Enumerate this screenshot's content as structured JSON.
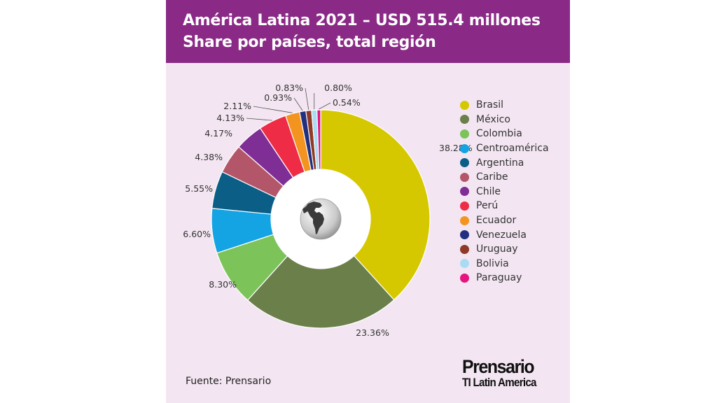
{
  "header": {
    "title": "América Latina 2021 – USD 515.4 millones",
    "subtitle": "Share por países, total región"
  },
  "source": "Fuente: Prensario",
  "logo": {
    "brand": "Prensario",
    "sub": "TI Latin America"
  },
  "colors": {
    "header_bg": "#8a2a86",
    "card_bg": "#f3e6f2"
  },
  "center_icon": "globe-americas-icon",
  "chart_data": {
    "type": "pie",
    "title": "América Latina 2021 – USD 515.4 millones",
    "subtitle": "Share por países, total región",
    "legend_position": "right",
    "series": [
      {
        "name": "Brasil",
        "value": 38.28,
        "label": "38.28%",
        "color": "#d6c800"
      },
      {
        "name": "México",
        "value": 23.36,
        "label": "23.36%",
        "color": "#6b7f4b"
      },
      {
        "name": "Colombia",
        "value": 8.3,
        "label": "8.30%",
        "color": "#7cc35a"
      },
      {
        "name": "Centroamérica",
        "value": 6.6,
        "label": "6.60%",
        "color": "#14a3e3"
      },
      {
        "name": "Argentina",
        "value": 5.55,
        "label": "5.55%",
        "color": "#0b5e86"
      },
      {
        "name": "Caribe",
        "value": 4.38,
        "label": "4.38%",
        "color": "#b4566a"
      },
      {
        "name": "Chile",
        "value": 4.17,
        "label": "4.17%",
        "color": "#7f2e96"
      },
      {
        "name": "Perú",
        "value": 4.13,
        "label": "4.13%",
        "color": "#ee2c45"
      },
      {
        "name": "Ecuador",
        "value": 2.11,
        "label": "2.11%",
        "color": "#f49420"
      },
      {
        "name": "Venezuela",
        "value": 0.93,
        "label": "0.93%",
        "color": "#23307f"
      },
      {
        "name": "Uruguay",
        "value": 0.83,
        "label": "0.83%",
        "color": "#8e3a27"
      },
      {
        "name": "Bolivia",
        "value": 0.8,
        "label": "0.80%",
        "color": "#a9dcf2"
      },
      {
        "name": "Paraguay",
        "value": 0.54,
        "label": "0.54%",
        "color": "#e5147f"
      }
    ]
  }
}
